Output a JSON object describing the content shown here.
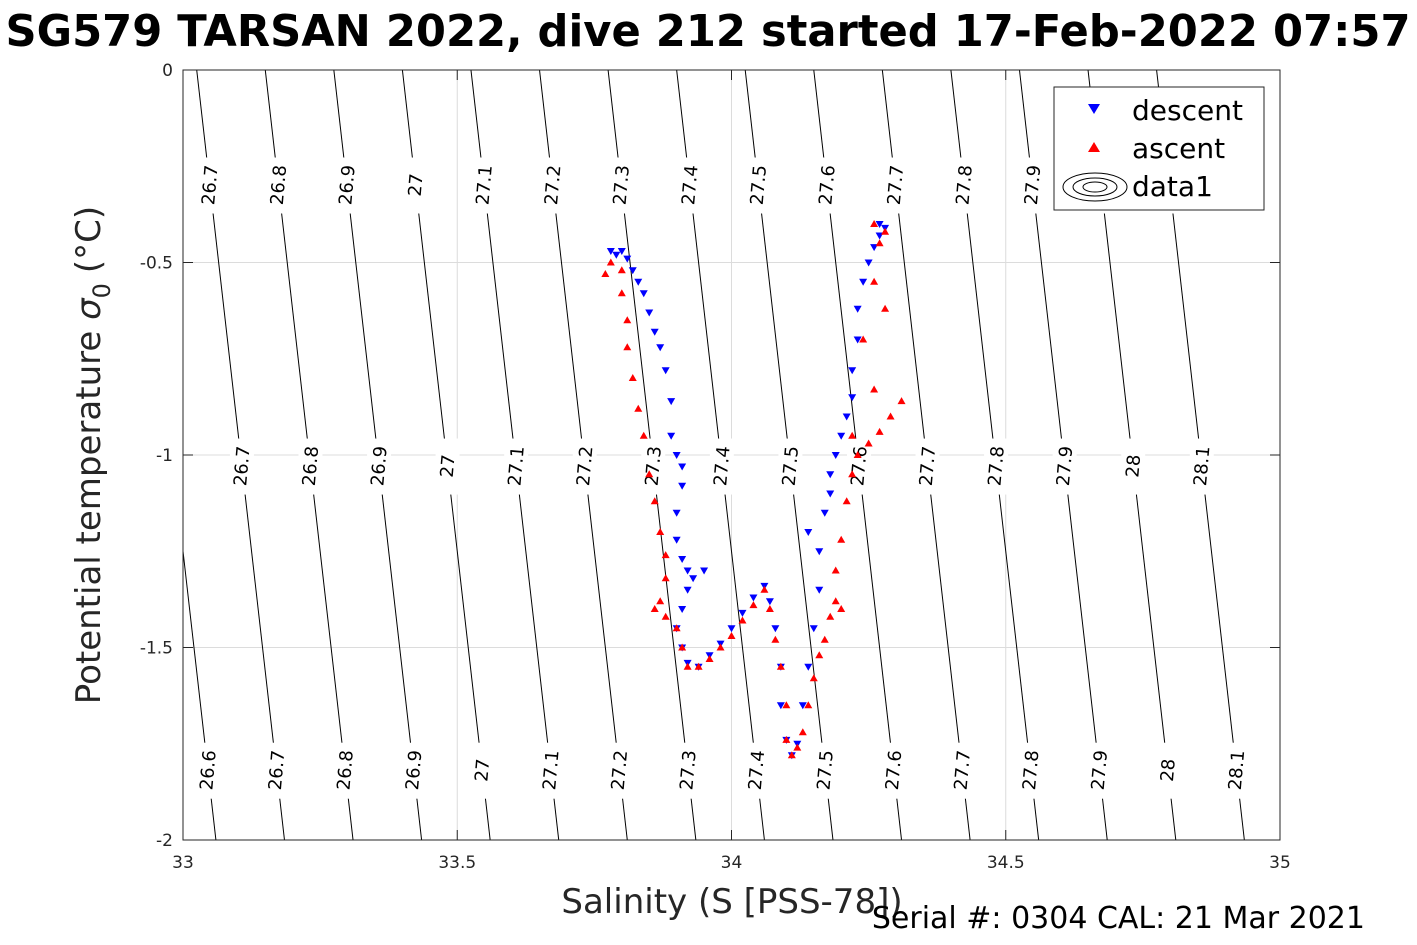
{
  "chart_data": {
    "type": "scatter",
    "title": "SG579 TARSAN 2022, dive 212 started 17-Feb-2022 07:57",
    "xlabel": "Salinity (S [PSS-78])",
    "ylabel": "Potential temperature",
    "ylabel_symbol": "σ",
    "ylabel_subscript": "0",
    "ylabel_unit": "(°C)",
    "xlim": [
      33,
      35
    ],
    "ylim": [
      -2,
      0
    ],
    "x_ticks": [
      33,
      33.5,
      34,
      34.5,
      35
    ],
    "x_tick_labels": [
      "33",
      "33.5",
      "34",
      "34.5",
      "35"
    ],
    "y_ticks": [
      0,
      -0.5,
      -1,
      -1.5,
      -2
    ],
    "y_tick_labels": [
      "0",
      "-0.5",
      "-1",
      "-1.5",
      "-2"
    ],
    "grid": true,
    "legend_position": "top-right",
    "legend": [
      "descent",
      "ascent",
      "data1"
    ],
    "footer": "Serial #: 0304  CAL: 21 Mar 2021",
    "isopycnal_labels": [
      "26.6",
      "26.7",
      "26.8",
      "26.9",
      "27",
      "27.1",
      "27.2",
      "27.3",
      "27.4",
      "27.5",
      "27.6",
      "27.7",
      "27.8",
      "27.9",
      "28",
      "28.1"
    ],
    "series": [
      {
        "name": "descent",
        "color": "#0000ff",
        "marker": "triangle-down",
        "points": [
          [
            33.78,
            -0.47
          ],
          [
            33.79,
            -0.48
          ],
          [
            33.8,
            -0.47
          ],
          [
            33.81,
            -0.49
          ],
          [
            33.82,
            -0.52
          ],
          [
            33.83,
            -0.55
          ],
          [
            33.84,
            -0.58
          ],
          [
            33.85,
            -0.63
          ],
          [
            33.86,
            -0.68
          ],
          [
            33.87,
            -0.72
          ],
          [
            33.88,
            -0.78
          ],
          [
            33.89,
            -0.86
          ],
          [
            33.89,
            -0.95
          ],
          [
            33.9,
            -1.0
          ],
          [
            33.91,
            -1.03
          ],
          [
            33.91,
            -1.08
          ],
          [
            33.9,
            -1.15
          ],
          [
            33.9,
            -1.22
          ],
          [
            33.91,
            -1.27
          ],
          [
            33.92,
            -1.3
          ],
          [
            33.93,
            -1.32
          ],
          [
            33.92,
            -1.35
          ],
          [
            33.91,
            -1.4
          ],
          [
            33.9,
            -1.45
          ],
          [
            33.91,
            -1.5
          ],
          [
            33.92,
            -1.54
          ],
          [
            33.94,
            -1.55
          ],
          [
            33.96,
            -1.52
          ],
          [
            33.98,
            -1.49
          ],
          [
            34.0,
            -1.45
          ],
          [
            34.02,
            -1.41
          ],
          [
            34.04,
            -1.37
          ],
          [
            34.06,
            -1.34
          ],
          [
            34.07,
            -1.38
          ],
          [
            34.08,
            -1.45
          ],
          [
            34.09,
            -1.55
          ],
          [
            34.09,
            -1.65
          ],
          [
            34.1,
            -1.74
          ],
          [
            34.11,
            -1.78
          ],
          [
            34.12,
            -1.75
          ],
          [
            34.13,
            -1.65
          ],
          [
            34.14,
            -1.55
          ],
          [
            34.15,
            -1.45
          ],
          [
            34.16,
            -1.35
          ],
          [
            34.16,
            -1.25
          ],
          [
            34.17,
            -1.15
          ],
          [
            34.18,
            -1.05
          ],
          [
            34.19,
            -1.0
          ],
          [
            34.2,
            -0.95
          ],
          [
            34.21,
            -0.9
          ],
          [
            34.22,
            -0.85
          ],
          [
            34.22,
            -0.78
          ],
          [
            34.23,
            -0.7
          ],
          [
            34.23,
            -0.62
          ],
          [
            34.24,
            -0.55
          ],
          [
            34.25,
            -0.5
          ],
          [
            34.26,
            -0.46
          ],
          [
            34.27,
            -0.43
          ],
          [
            34.27,
            -0.4
          ],
          [
            34.28,
            -0.41
          ],
          [
            34.18,
            -1.1
          ],
          [
            34.14,
            -1.2
          ],
          [
            33.95,
            -1.3
          ]
        ]
      },
      {
        "name": "ascent",
        "color": "#ff0000",
        "marker": "triangle-up",
        "points": [
          [
            33.77,
            -0.53
          ],
          [
            33.78,
            -0.5
          ],
          [
            33.8,
            -0.52
          ],
          [
            33.8,
            -0.58
          ],
          [
            33.81,
            -0.65
          ],
          [
            33.81,
            -0.72
          ],
          [
            33.82,
            -0.8
          ],
          [
            33.83,
            -0.88
          ],
          [
            33.84,
            -0.95
          ],
          [
            33.85,
            -1.05
          ],
          [
            33.86,
            -1.12
          ],
          [
            33.87,
            -1.2
          ],
          [
            33.88,
            -1.26
          ],
          [
            33.88,
            -1.32
          ],
          [
            33.87,
            -1.38
          ],
          [
            33.86,
            -1.4
          ],
          [
            33.88,
            -1.42
          ],
          [
            33.9,
            -1.45
          ],
          [
            33.91,
            -1.5
          ],
          [
            33.92,
            -1.55
          ],
          [
            33.94,
            -1.55
          ],
          [
            33.96,
            -1.53
          ],
          [
            33.98,
            -1.5
          ],
          [
            34.0,
            -1.47
          ],
          [
            34.02,
            -1.43
          ],
          [
            34.04,
            -1.39
          ],
          [
            34.06,
            -1.35
          ],
          [
            34.07,
            -1.4
          ],
          [
            34.08,
            -1.48
          ],
          [
            34.09,
            -1.55
          ],
          [
            34.1,
            -1.65
          ],
          [
            34.1,
            -1.74
          ],
          [
            34.11,
            -1.78
          ],
          [
            34.12,
            -1.76
          ],
          [
            34.13,
            -1.72
          ],
          [
            34.14,
            -1.65
          ],
          [
            34.15,
            -1.58
          ],
          [
            34.16,
            -1.52
          ],
          [
            34.17,
            -1.48
          ],
          [
            34.18,
            -1.42
          ],
          [
            34.19,
            -1.3
          ],
          [
            34.2,
            -1.22
          ],
          [
            34.21,
            -1.12
          ],
          [
            34.22,
            -1.05
          ],
          [
            34.23,
            -1.0
          ],
          [
            34.25,
            -0.97
          ],
          [
            34.27,
            -0.94
          ],
          [
            34.29,
            -0.9
          ],
          [
            34.31,
            -0.86
          ],
          [
            34.28,
            -0.62
          ],
          [
            34.26,
            -0.55
          ],
          [
            34.27,
            -0.45
          ],
          [
            34.28,
            -0.42
          ],
          [
            34.26,
            -0.4
          ],
          [
            34.24,
            -0.7
          ],
          [
            34.26,
            -0.83
          ],
          [
            34.22,
            -0.95
          ],
          [
            34.2,
            -1.4
          ],
          [
            34.19,
            -1.38
          ]
        ]
      }
    ]
  }
}
